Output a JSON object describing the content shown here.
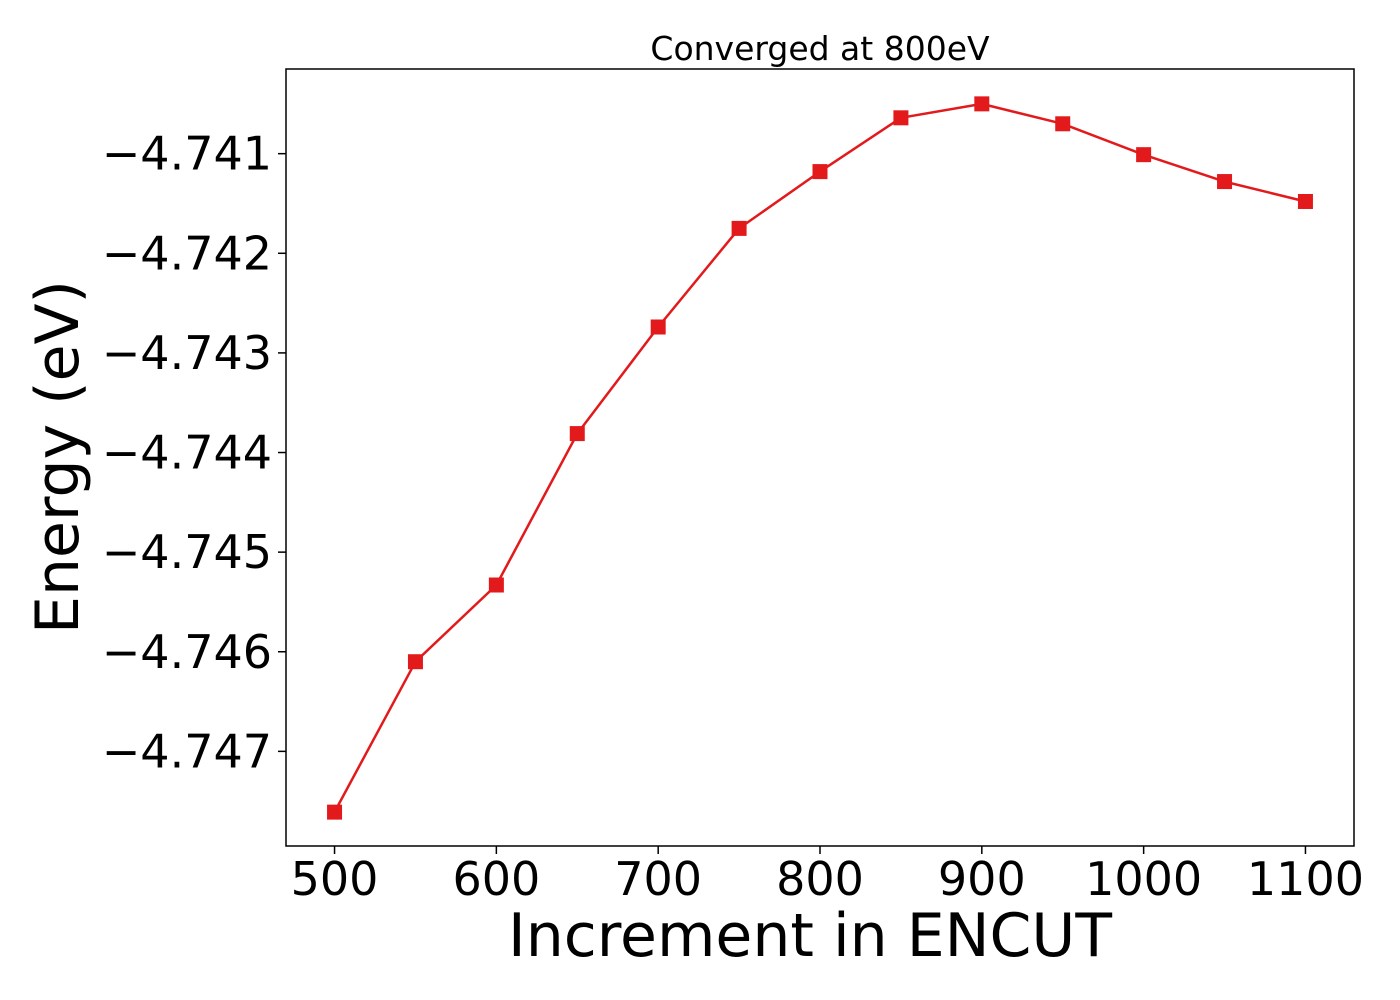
{
  "chart_data": {
    "type": "line",
    "title": "Converged at 800eV",
    "xlabel": "Increment in ENCUT",
    "ylabel": "Energy (eV)",
    "x": [
      500,
      550,
      600,
      650,
      700,
      750,
      800,
      850,
      900,
      950,
      1000,
      1050,
      1100
    ],
    "series": [
      {
        "values": [
          -4.74761,
          -4.7461,
          -4.74533,
          -4.74381,
          -4.74274,
          -4.74175,
          -4.74118,
          -4.74064,
          -4.7405,
          -4.7407,
          -4.74101,
          -4.74128,
          -4.74148
        ],
        "color": "#e31a1c",
        "marker": "square"
      }
    ],
    "xticks": [
      500,
      600,
      700,
      800,
      900,
      1000,
      1100
    ],
    "xtick_labels": [
      "500",
      "600",
      "700",
      "800",
      "900",
      "1000",
      "1100"
    ],
    "yticks": [
      -4.747,
      -4.746,
      -4.745,
      -4.744,
      -4.743,
      -4.742,
      -4.741
    ],
    "ytick_labels": [
      "−4.747",
      "−4.746",
      "−4.745",
      "−4.744",
      "−4.743",
      "−4.742",
      "−4.741"
    ],
    "xlim": [
      470,
      1130
    ],
    "ylim": [
      -4.74795,
      -4.74015
    ],
    "grid": false,
    "legend": "none"
  }
}
